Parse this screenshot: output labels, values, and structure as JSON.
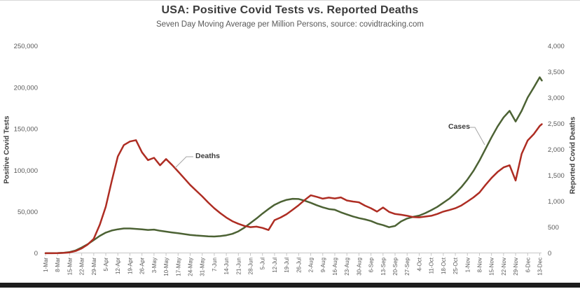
{
  "chart_data": {
    "type": "line",
    "title": "USA: Positive Covid Tests vs. Reported Deaths",
    "subtitle": "Seven Day Moving Average per Million Persons, source: covidtracking.com",
    "grid": "off",
    "legend": "none (direct line annotations)",
    "points_per_week": 2,
    "x_range": [
      "1-Mar",
      "13-Dec"
    ],
    "x_tick_labels": [
      "1-Mar",
      "8-Mar",
      "15-Mar",
      "22-Mar",
      "29-Mar",
      "5-Apr",
      "12-Apr",
      "19-Apr",
      "26-Apr",
      "3-May",
      "10-May",
      "17-May",
      "24-May",
      "31-May",
      "7-Jun",
      "14-Jun",
      "21-Jun",
      "28-Jun",
      "5-Jul",
      "12-Jul",
      "19-Jul",
      "26-Jul",
      "2-Aug",
      "9-Aug",
      "16-Aug",
      "23-Aug",
      "30-Aug",
      "6-Sep",
      "13-Sep",
      "20-Sep",
      "27-Sep",
      "4-Oct",
      "11-Oct",
      "18-Oct",
      "25-Oct",
      "1-Nov",
      "8-Nov",
      "15-Nov",
      "22-Nov",
      "29-Nov",
      "6-Dec",
      "13-Dec"
    ],
    "left_axis": {
      "title": "Positive Covid Tests",
      "min": 0,
      "max": 250000,
      "ticks": [
        "250,000",
        "200,000",
        "150,000",
        "100,000",
        "50,000",
        "0"
      ]
    },
    "right_axis": {
      "title": "Reported Covid Deaths",
      "min": 0,
      "max": 4000,
      "ticks": [
        "4,000",
        "3,500",
        "3,000",
        "2,500",
        "2,000",
        "1,500",
        "1,000",
        "500",
        "0"
      ]
    },
    "series": [
      {
        "name": "Cases",
        "axis": "left",
        "color": "#4c6234",
        "values": [
          200,
          250,
          350,
          700,
          1500,
          3500,
          7000,
          11000,
          16000,
          21000,
          25000,
          27500,
          29000,
          30000,
          30000,
          29500,
          29000,
          28200,
          28600,
          27200,
          26200,
          25200,
          24200,
          23200,
          22200,
          21500,
          21000,
          20500,
          20300,
          20800,
          21800,
          23500,
          26500,
          31000,
          36500,
          42000,
          48000,
          53500,
          58500,
          62000,
          64500,
          65800,
          65500,
          63500,
          61000,
          58000,
          55500,
          53500,
          52500,
          49500,
          47000,
          44500,
          42500,
          41000,
          39000,
          36000,
          34000,
          31500,
          33000,
          38500,
          42000,
          44000,
          45500,
          48500,
          52000,
          56000,
          61000,
          66000,
          72500,
          80000,
          89000,
          99500,
          112000,
          126000,
          140000,
          153000,
          164000,
          172000,
          159000,
          172000,
          188000,
          200000,
          212500
        ],
        "tail_value": 208500
      },
      {
        "name": "Deaths",
        "axis": "right",
        "color": "#ae2d23",
        "values": [
          1,
          2,
          4,
          8,
          18,
          45,
          95,
          170,
          280,
          550,
          900,
          1400,
          1870,
          2090,
          2160,
          2185,
          1950,
          1800,
          1845,
          1700,
          1820,
          1705,
          1580,
          1450,
          1320,
          1210,
          1100,
          980,
          870,
          775,
          690,
          620,
          570,
          530,
          505,
          515,
          490,
          450,
          640,
          690,
          755,
          840,
          930,
          1030,
          1120,
          1090,
          1055,
          1075,
          1060,
          1080,
          1020,
          1000,
          985,
          920,
          870,
          805,
          885,
          800,
          760,
          745,
          725,
          700,
          695,
          710,
          725,
          760,
          805,
          835,
          870,
          925,
          1000,
          1080,
          1175,
          1320,
          1455,
          1570,
          1660,
          1700,
          1405,
          1920,
          2180,
          2300,
          2460
        ],
        "tail_value": 2495
      }
    ],
    "annotations": [
      {
        "label": "Deaths",
        "leader": [
          [
            276,
            224
          ],
          [
            266,
            224
          ],
          [
            250,
            240
          ]
        ]
      },
      {
        "label": "Cases",
        "leader": [
          [
            670,
            182
          ],
          [
            678,
            182
          ],
          [
            692,
            207
          ]
        ]
      }
    ],
    "colors": {
      "cases_line": "#4c6234",
      "deaths_line": "#ae2d23",
      "axis_line": "#c6c6c6",
      "leader_line": "#a6a6a6",
      "text_dark": "#3b3b3b",
      "text_gray": "#595959"
    }
  },
  "window": {
    "bottom_edge_color": "#1d1d1d"
  }
}
